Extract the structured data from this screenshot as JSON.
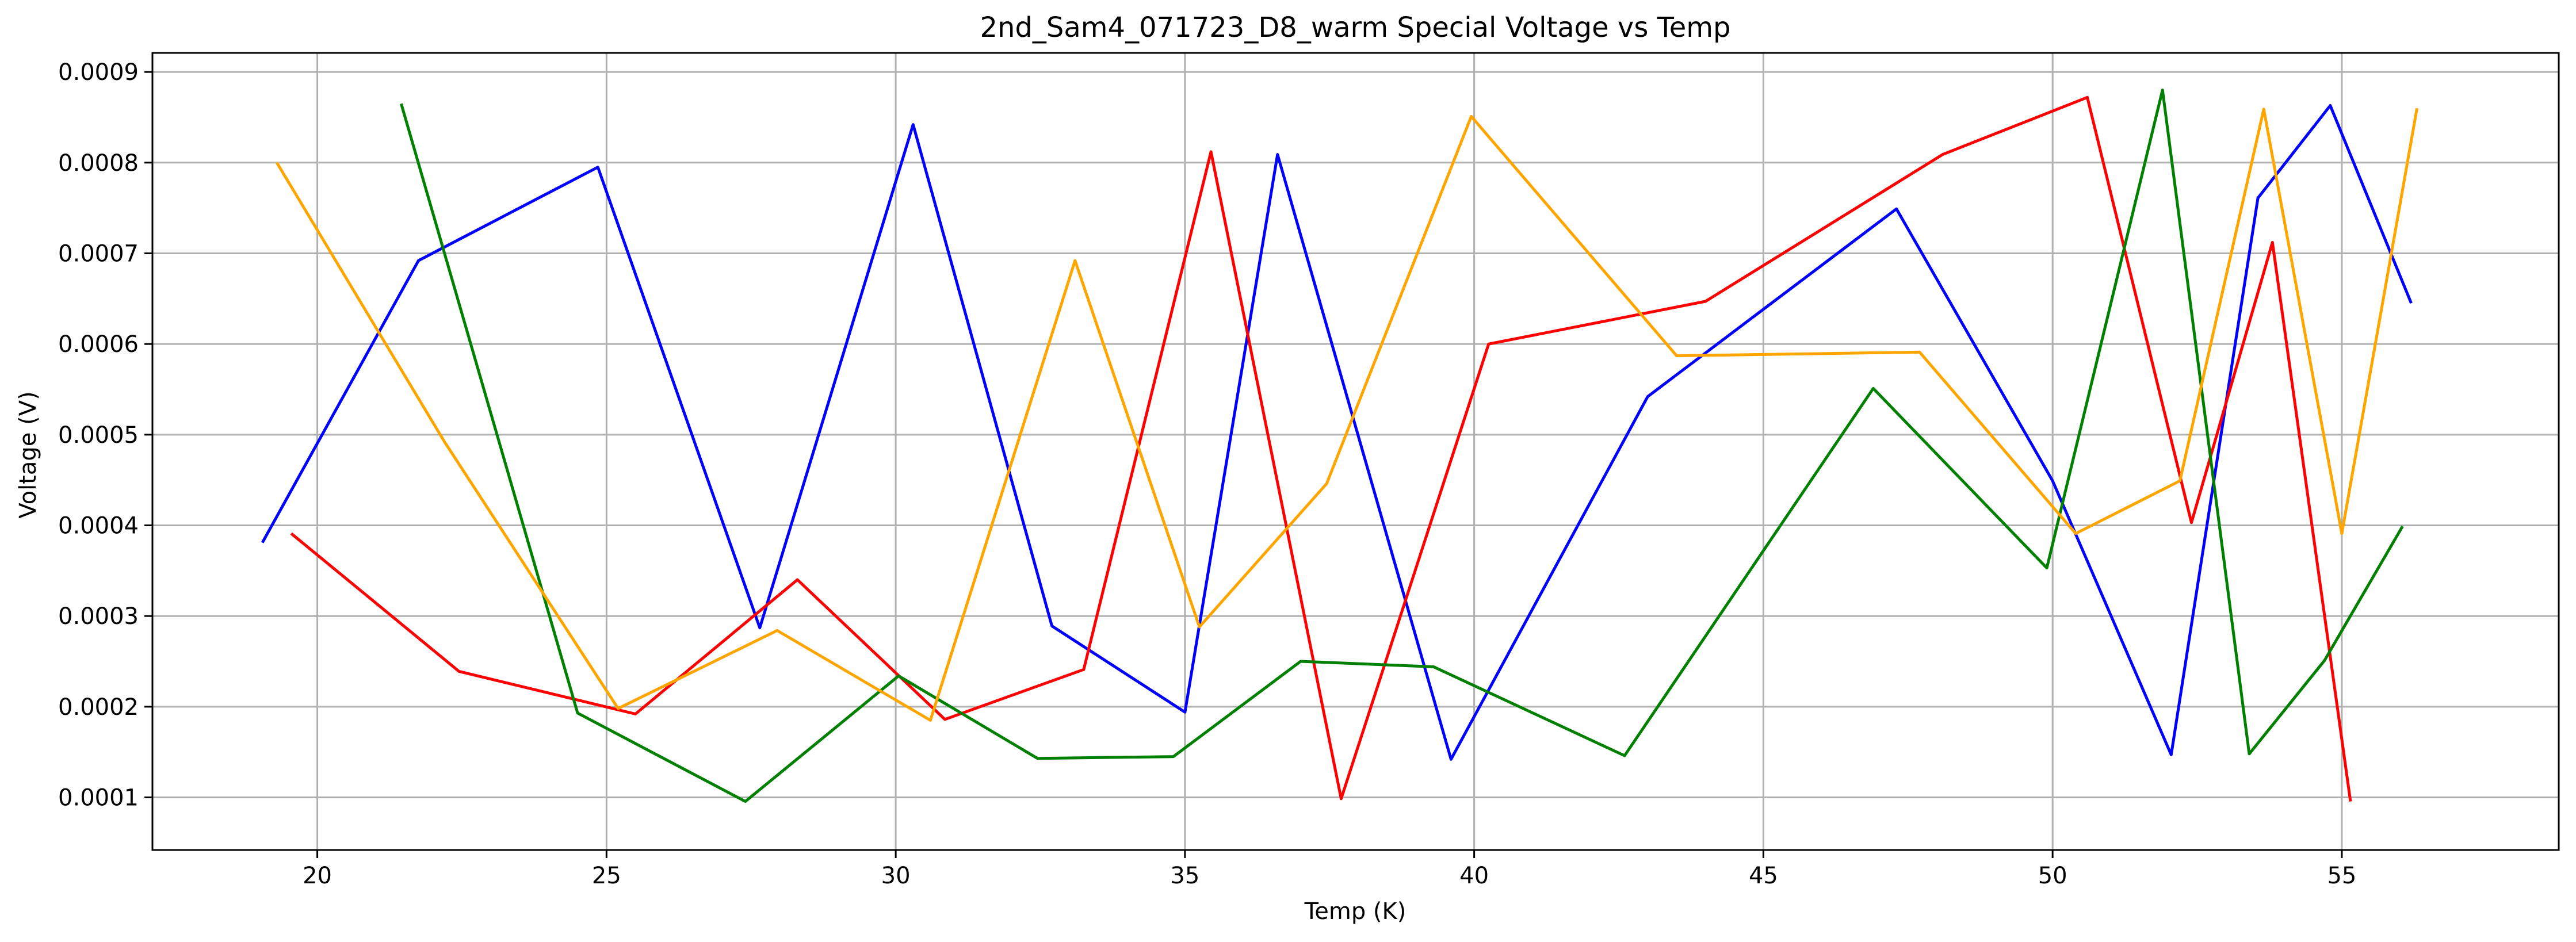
{
  "chart_data": {
    "type": "line",
    "title": "2nd_Sam4_071723_D8_warm Special Voltage vs Temp",
    "xlabel": "Temp (K)",
    "ylabel": "Voltage (V)",
    "xlim": [
      17.15,
      58.75
    ],
    "ylim": [
      4.2e-05,
      0.000921
    ],
    "xticks": [
      20,
      25,
      30,
      35,
      40,
      45,
      50,
      55
    ],
    "xtick_labels": [
      "20",
      "25",
      "30",
      "35",
      "40",
      "45",
      "50",
      "55"
    ],
    "yticks": [
      0.0001,
      0.0002,
      0.0003,
      0.0004,
      0.0005,
      0.0006,
      0.0007,
      0.0008,
      0.0009
    ],
    "ytick_labels": [
      "0.0001",
      "0.0002",
      "0.0003",
      "0.0004",
      "0.0005",
      "0.0006",
      "0.0007",
      "0.0008",
      "0.0009"
    ],
    "grid": true,
    "series": [
      {
        "color": "#0000ff",
        "x": [
          19.05,
          21.75,
          24.85,
          27.65,
          30.3,
          32.7,
          35.0,
          36.6,
          39.6,
          43.0,
          47.3,
          50.0,
          52.05,
          53.55,
          54.8,
          56.2
        ],
        "y": [
          0.000381,
          0.000692,
          0.000795,
          0.000287,
          0.000842,
          0.000289,
          0.000194,
          0.000809,
          0.000142,
          0.000542,
          0.000749,
          0.000449,
          0.000147,
          0.000761,
          0.000863,
          0.000645
        ]
      },
      {
        "color": "#ff0000",
        "x": [
          19.55,
          22.45,
          25.5,
          28.3,
          30.85,
          33.25,
          35.45,
          37.7,
          40.25,
          44.0,
          48.1,
          50.6,
          52.4,
          53.8,
          55.15
        ],
        "y": [
          0.000391,
          0.000239,
          0.000192,
          0.00034,
          0.000186,
          0.000241,
          0.000812,
          9.85e-05,
          0.0006,
          0.000647,
          0.000809,
          0.000872,
          0.000403,
          0.000712,
          9.55e-05
        ]
      },
      {
        "color": "#008000",
        "x": [
          21.45,
          24.5,
          27.4,
          30.05,
          32.45,
          34.8,
          37.0,
          39.3,
          42.6,
          46.9,
          49.9,
          51.9,
          53.4,
          54.7,
          56.05
        ],
        "y": [
          0.000865,
          0.000193,
          9.55e-05,
          0.000234,
          0.000143,
          0.000145,
          0.00025,
          0.000244,
          0.000146,
          0.000551,
          0.000353,
          0.00088,
          0.000148,
          0.000251,
          0.000399
        ]
      },
      {
        "color": "#ffa500",
        "x": [
          19.3,
          22.2,
          25.2,
          27.95,
          30.6,
          33.1,
          35.25,
          37.45,
          39.95,
          43.5,
          47.7,
          50.4,
          52.2,
          53.65,
          55.0,
          56.3
        ],
        "y": [
          0.0008,
          0.000492,
          0.000198,
          0.000284,
          0.000185,
          0.000692,
          0.000288,
          0.000446,
          0.000851,
          0.000587,
          0.000591,
          0.000391,
          0.000449,
          0.000859,
          0.000391,
          0.00086
        ]
      }
    ]
  }
}
